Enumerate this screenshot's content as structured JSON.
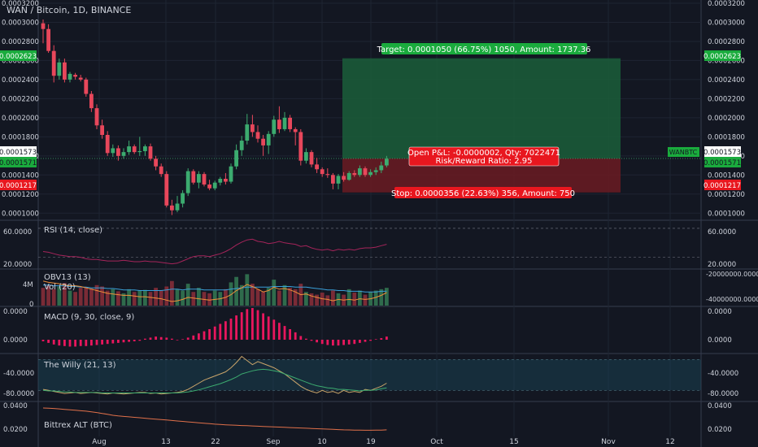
{
  "header": {
    "title": "WAN / Bitcoin, 1D, BINANCE"
  },
  "colors": {
    "up": "#3cab6f",
    "down": "#e8475b",
    "bg": "#131722",
    "grid": "#1e2432",
    "text": "#cfd3dc",
    "profit": "#1b5e3a",
    "loss": "#6b1b22"
  },
  "chart_data": [
    {
      "type": "candlestick",
      "title": "WAN / Bitcoin, 1D, BINANCE",
      "symbol_tag": "WANBTC",
      "ylim": [
        9e-05,
        0.00032
      ],
      "yticks": [
        "0.0003200",
        "0.0003000",
        "0.0002800",
        "0.0002600",
        "0.0002400",
        "0.0002200",
        "0.0002000",
        "0.0001800",
        "0.0001600",
        "0.0001400",
        "0.0001200",
        "0.0001000"
      ],
      "x_labels": [
        "Aug",
        "13",
        "22",
        "Sep",
        "10",
        "19",
        "Oct",
        "15",
        "Nov",
        "12"
      ],
      "price_tags": {
        "target": "0.0002623",
        "current": "0.0001573",
        "current2": "0.0001571",
        "stop": "0.0001217"
      },
      "candles": [
        {
          "o": 0.000299,
          "h": 0.000303,
          "l": 0.000278,
          "c": 0.000293
        },
        {
          "o": 0.000293,
          "h": 0.000298,
          "l": 0.000268,
          "c": 0.00027
        },
        {
          "o": 0.00027,
          "h": 0.000276,
          "l": 0.000237,
          "c": 0.000244
        },
        {
          "o": 0.000244,
          "h": 0.000262,
          "l": 0.00024,
          "c": 0.000258
        },
        {
          "o": 0.000258,
          "h": 0.000262,
          "l": 0.000237,
          "c": 0.00024
        },
        {
          "o": 0.00024,
          "h": 0.000248,
          "l": 0.000237,
          "c": 0.000246
        },
        {
          "o": 0.000245,
          "h": 0.000247,
          "l": 0.00024,
          "c": 0.000243
        },
        {
          "o": 0.000242,
          "h": 0.000245,
          "l": 0.000238,
          "c": 0.00024
        },
        {
          "o": 0.00024,
          "h": 0.000242,
          "l": 0.000222,
          "c": 0.000225
        },
        {
          "o": 0.000225,
          "h": 0.000228,
          "l": 0.000206,
          "c": 0.00021
        },
        {
          "o": 0.00021,
          "h": 0.000214,
          "l": 0.000188,
          "c": 0.000192
        },
        {
          "o": 0.000192,
          "h": 0.000198,
          "l": 0.000178,
          "c": 0.000182
        },
        {
          "o": 0.000182,
          "h": 0.000186,
          "l": 0.00016,
          "c": 0.000163
        },
        {
          "o": 0.000163,
          "h": 0.000172,
          "l": 0.000159,
          "c": 0.000168
        },
        {
          "o": 0.000168,
          "h": 0.000171,
          "l": 0.000155,
          "c": 0.00016
        },
        {
          "o": 0.00016,
          "h": 0.000168,
          "l": 0.000157,
          "c": 0.000164
        },
        {
          "o": 0.000164,
          "h": 0.000176,
          "l": 0.000161,
          "c": 0.00017
        },
        {
          "o": 0.00017,
          "h": 0.000172,
          "l": 0.000162,
          "c": 0.000164
        },
        {
          "o": 0.000164,
          "h": 0.00018,
          "l": 0.00016,
          "c": 0.000165
        },
        {
          "o": 0.000165,
          "h": 0.000172,
          "l": 0.00016,
          "c": 0.00017
        },
        {
          "o": 0.00017,
          "h": 0.000173,
          "l": 0.000155,
          "c": 0.000157
        },
        {
          "o": 0.000157,
          "h": 0.00016,
          "l": 0.000145,
          "c": 0.000149
        },
        {
          "o": 0.000149,
          "h": 0.000152,
          "l": 0.000138,
          "c": 0.000141
        },
        {
          "o": 0.000141,
          "h": 0.000144,
          "l": 0.000106,
          "c": 0.000108
        },
        {
          "o": 0.000108,
          "h": 0.000114,
          "l": 9.8e-05,
          "c": 0.000103
        },
        {
          "o": 0.000103,
          "h": 0.000118,
          "l": 0.000101,
          "c": 0.00011
        },
        {
          "o": 0.00011,
          "h": 0.000124,
          "l": 0.000106,
          "c": 0.000121
        },
        {
          "o": 0.000121,
          "h": 0.000147,
          "l": 0.000118,
          "c": 0.000144
        },
        {
          "o": 0.000144,
          "h": 0.000146,
          "l": 0.00013,
          "c": 0.000132
        },
        {
          "o": 0.000132,
          "h": 0.000144,
          "l": 0.000126,
          "c": 0.000141
        },
        {
          "o": 0.000141,
          "h": 0.000143,
          "l": 0.000128,
          "c": 0.00013
        },
        {
          "o": 0.00013,
          "h": 0.000135,
          "l": 0.000124,
          "c": 0.000126
        },
        {
          "o": 0.000126,
          "h": 0.000134,
          "l": 0.000124,
          "c": 0.000132
        },
        {
          "o": 0.000132,
          "h": 0.000138,
          "l": 0.000129,
          "c": 0.000136
        },
        {
          "o": 0.000136,
          "h": 0.000142,
          "l": 0.00013,
          "c": 0.000133
        },
        {
          "o": 0.000133,
          "h": 0.000152,
          "l": 0.000131,
          "c": 0.000149
        },
        {
          "o": 0.000149,
          "h": 0.000172,
          "l": 0.000146,
          "c": 0.000166
        },
        {
          "o": 0.000166,
          "h": 0.000181,
          "l": 0.00016,
          "c": 0.000176
        },
        {
          "o": 0.000176,
          "h": 0.000204,
          "l": 0.000172,
          "c": 0.000193
        },
        {
          "o": 0.000193,
          "h": 0.000203,
          "l": 0.00018,
          "c": 0.000185
        },
        {
          "o": 0.000185,
          "h": 0.000192,
          "l": 0.000174,
          "c": 0.000178
        },
        {
          "o": 0.000178,
          "h": 0.000182,
          "l": 0.00016,
          "c": 0.000171
        },
        {
          "o": 0.000171,
          "h": 0.000186,
          "l": 0.000162,
          "c": 0.000183
        },
        {
          "o": 0.000183,
          "h": 0.000202,
          "l": 0.00018,
          "c": 0.000198
        },
        {
          "o": 0.000198,
          "h": 0.000212,
          "l": 0.000184,
          "c": 0.000188
        },
        {
          "o": 0.000188,
          "h": 0.000206,
          "l": 0.000186,
          "c": 0.0002
        },
        {
          "o": 0.0002,
          "h": 0.000203,
          "l": 0.000185,
          "c": 0.000188
        },
        {
          "o": 0.000188,
          "h": 0.00019,
          "l": 0.000171,
          "c": 0.000185
        },
        {
          "o": 0.000185,
          "h": 0.000188,
          "l": 0.00015,
          "c": 0.000155
        },
        {
          "o": 0.000155,
          "h": 0.000168,
          "l": 0.000152,
          "c": 0.000164
        },
        {
          "o": 0.000164,
          "h": 0.000166,
          "l": 0.000148,
          "c": 0.000151
        },
        {
          "o": 0.000151,
          "h": 0.000158,
          "l": 0.000142,
          "c": 0.000146
        },
        {
          "o": 0.000146,
          "h": 0.000148,
          "l": 0.000138,
          "c": 0.000141
        },
        {
          "o": 0.000141,
          "h": 0.000147,
          "l": 0.000137,
          "c": 0.00014
        },
        {
          "o": 0.00014,
          "h": 0.000142,
          "l": 0.000125,
          "c": 0.000131
        },
        {
          "o": 0.000131,
          "h": 0.000141,
          "l": 0.000125,
          "c": 0.000139
        },
        {
          "o": 0.000139,
          "h": 0.000143,
          "l": 0.000133,
          "c": 0.000135
        },
        {
          "o": 0.000135,
          "h": 0.000144,
          "l": 0.000134,
          "c": 0.000142
        },
        {
          "o": 0.000142,
          "h": 0.000145,
          "l": 0.000138,
          "c": 0.00014
        },
        {
          "o": 0.00014,
          "h": 0.00015,
          "l": 0.000138,
          "c": 0.000147
        },
        {
          "o": 0.000147,
          "h": 0.000149,
          "l": 0.000138,
          "c": 0.00014
        },
        {
          "o": 0.00014,
          "h": 0.000146,
          "l": 0.000138,
          "c": 0.000143
        },
        {
          "o": 0.000143,
          "h": 0.000148,
          "l": 0.00014,
          "c": 0.000145
        },
        {
          "o": 0.000145,
          "h": 0.000154,
          "l": 0.000142,
          "c": 0.00015
        },
        {
          "o": 0.00015,
          "h": 0.00016,
          "l": 0.000148,
          "c": 0.000157
        }
      ],
      "position": {
        "target_price": 0.0002623,
        "entry_price": 0.0001573,
        "stop_price": 0.0001217,
        "target_label": "Target: 0.0001050 (66.75%) 1050, Amount: 1737.36",
        "pnl_label": "Open P&L: -0.0000002, Qty: 7022471",
        "rr_label": "Risk/Reward Ratio: 2.95",
        "stop_label": "Stop: 0.0000356 (22.63%) 356, Amount: 750"
      }
    },
    {
      "type": "line",
      "title": "RSI (14, close)",
      "yticks": [
        "60.0000",
        "20.0000"
      ],
      "ylim": [
        15,
        80
      ],
      "values": [
        38,
        37,
        35,
        33,
        32,
        31,
        31,
        30,
        28,
        27,
        27,
        26,
        25,
        25,
        25,
        26,
        25,
        24,
        24,
        25,
        24,
        24,
        23,
        22,
        21,
        22,
        25,
        28,
        31,
        32,
        32,
        31,
        33,
        35,
        38,
        42,
        47,
        51,
        54,
        55,
        52,
        51,
        49,
        50,
        52,
        50,
        49,
        48,
        45,
        46,
        43,
        41,
        40,
        41,
        39,
        41,
        40,
        41,
        40,
        42,
        43,
        43,
        44,
        46,
        48
      ]
    },
    {
      "type": "bar+line",
      "title": "OBV13 (13)",
      "subtitle": "Vol (20)",
      "left_ticks": [
        "4M",
        "0"
      ],
      "right_ticks": [
        "-20000000.0000",
        "-40000000.0000"
      ],
      "volume": [
        2.6,
        3.0,
        2.4,
        2.8,
        3.3,
        2.2,
        2.0,
        2.6,
        2.7,
        2.5,
        3.0,
        2.8,
        2.2,
        2.4,
        2.1,
        1.8,
        2.4,
        2.0,
        2.2,
        2.3,
        2.0,
        2.6,
        2.2,
        2.8,
        3.6,
        2.4,
        2.2,
        3.2,
        2.0,
        2.6,
        2.0,
        1.8,
        2.2,
        2.0,
        2.4,
        3.4,
        4.2,
        3.0,
        4.6,
        3.2,
        2.4,
        2.0,
        2.6,
        3.8,
        2.2,
        3.0,
        2.6,
        2.4,
        3.2,
        2.0,
        1.8,
        1.6,
        1.9,
        1.5,
        2.2,
        1.8,
        1.6,
        2.4,
        1.9,
        2.2,
        1.6,
        2.0,
        2.2,
        2.4,
        2.6
      ],
      "obv": [
        3.6,
        3.4,
        3.3,
        3.2,
        3.0,
        2.9,
        2.9,
        2.8,
        2.6,
        2.4,
        2.2,
        2.0,
        1.8,
        1.7,
        1.6,
        1.5,
        1.5,
        1.4,
        1.3,
        1.3,
        1.2,
        1.1,
        1.0,
        0.8,
        0.6,
        0.7,
        0.9,
        1.2,
        1.1,
        1.0,
        0.9,
        0.8,
        0.9,
        1.0,
        1.2,
        1.6,
        2.2,
        2.6,
        3.1,
        2.8,
        2.4,
        2.0,
        2.2,
        2.7,
        2.4,
        2.5,
        2.3,
        2.0,
        1.6,
        1.7,
        1.4,
        1.2,
        1.0,
        0.9,
        0.7,
        0.9,
        0.8,
        0.9,
        0.8,
        1.0,
        0.9,
        1.0,
        1.2,
        1.5,
        1.9
      ],
      "vol_ma": [
        3.0,
        3.0,
        2.9,
        2.9,
        2.9,
        2.8,
        2.8,
        2.7,
        2.7,
        2.6,
        2.6,
        2.6,
        2.5,
        2.5,
        2.4,
        2.3,
        2.3,
        2.3,
        2.2,
        2.2,
        2.2,
        2.2,
        2.2,
        2.3,
        2.4,
        2.4,
        2.3,
        2.4,
        2.4,
        2.4,
        2.3,
        2.3,
        2.3,
        2.3,
        2.3,
        2.4,
        2.5,
        2.6,
        2.7,
        2.7,
        2.7,
        2.7,
        2.7,
        2.8,
        2.8,
        2.8,
        2.8,
        2.7,
        2.7,
        2.7,
        2.6,
        2.5,
        2.4,
        2.3,
        2.3,
        2.2,
        2.2,
        2.1,
        2.1,
        2.1,
        2.0,
        2.0,
        2.0,
        2.1,
        2.1
      ]
    },
    {
      "type": "histogram",
      "title": "MACD (9, 30, close, 9)",
      "yticks": [
        "0.0000",
        "0.0000"
      ],
      "values": [
        -0.3,
        -0.6,
        -0.9,
        -1.1,
        -1.2,
        -1.3,
        -1.3,
        -1.2,
        -1.2,
        -1.1,
        -1.0,
        -0.9,
        -0.8,
        -0.7,
        -0.6,
        -0.5,
        -0.4,
        -0.3,
        -0.2,
        0.2,
        0.4,
        0.6,
        0.5,
        0.4,
        0.2,
        -0.1,
        0.1,
        0.4,
        0.8,
        1.2,
        1.6,
        2.0,
        2.5,
        3.0,
        3.5,
        4.0,
        4.6,
        5.2,
        5.8,
        6.0,
        5.6,
        5.0,
        4.4,
        3.8,
        3.2,
        2.6,
        2.0,
        1.4,
        0.7,
        0.2,
        -0.2,
        -0.5,
        -0.8,
        -1.0,
        -1.1,
        -1.1,
        -1.0,
        -0.9,
        -0.8,
        -0.6,
        -0.4,
        -0.2,
        0.1,
        0.3,
        0.6
      ]
    },
    {
      "type": "line",
      "title": "The Willy (21, 13)",
      "yticks": [
        "-40.0000",
        "-80.0000"
      ],
      "ylim": [
        -100,
        -10
      ],
      "willy": [
        -78,
        -80,
        -82,
        -84,
        -86,
        -85,
        -84,
        -86,
        -85,
        -84,
        -85,
        -86,
        -87,
        -85,
        -86,
        -87,
        -86,
        -85,
        -84,
        -84,
        -86,
        -85,
        -87,
        -86,
        -85,
        -84,
        -82,
        -78,
        -72,
        -66,
        -60,
        -56,
        -52,
        -48,
        -44,
        -36,
        -26,
        -14,
        -22,
        -30,
        -24,
        -28,
        -32,
        -36,
        -42,
        -48,
        -56,
        -64,
        -72,
        -78,
        -82,
        -85,
        -80,
        -84,
        -82,
        -86,
        -80,
        -84,
        -82,
        -84,
        -78,
        -80,
        -76,
        -72,
        -66
      ],
      "signal": [
        -80,
        -81,
        -81,
        -82,
        -83,
        -83,
        -84,
        -84,
        -84,
        -84,
        -84,
        -85,
        -85,
        -85,
        -85,
        -85,
        -85,
        -85,
        -85,
        -85,
        -85,
        -85,
        -85,
        -85,
        -85,
        -85,
        -84,
        -83,
        -81,
        -79,
        -76,
        -73,
        -70,
        -67,
        -63,
        -59,
        -54,
        -48,
        -45,
        -42,
        -40,
        -39,
        -40,
        -42,
        -44,
        -48,
        -52,
        -56,
        -60,
        -64,
        -68,
        -71,
        -73,
        -75,
        -76,
        -78,
        -78,
        -79,
        -80,
        -81,
        -80,
        -80,
        -79,
        -77,
        -75
      ]
    },
    {
      "type": "line",
      "title": "Bittrex ALT (BTC)",
      "yticks": [
        "0.0400",
        "0.0200"
      ],
      "ylim": [
        0.015,
        0.045
      ],
      "values": [
        0.04,
        0.0398,
        0.0396,
        0.0392,
        0.0388,
        0.0384,
        0.038,
        0.0376,
        0.0372,
        0.0366,
        0.036,
        0.0352,
        0.0344,
        0.0336,
        0.033,
        0.0326,
        0.0322,
        0.0318,
        0.0314,
        0.031,
        0.0306,
        0.0302,
        0.0298,
        0.0294,
        0.029,
        0.0286,
        0.0282,
        0.0278,
        0.0274,
        0.027,
        0.0266,
        0.0262,
        0.0258,
        0.0255,
        0.0252,
        0.025,
        0.0248,
        0.0246,
        0.0244,
        0.0242,
        0.024,
        0.0238,
        0.0236,
        0.0234,
        0.0232,
        0.023,
        0.0228,
        0.0226,
        0.0224,
        0.0222,
        0.022,
        0.0218,
        0.0216,
        0.0214,
        0.0212,
        0.021,
        0.0208,
        0.0207,
        0.0206,
        0.0205,
        0.0204,
        0.0204,
        0.0205,
        0.0206,
        0.0208
      ]
    }
  ]
}
